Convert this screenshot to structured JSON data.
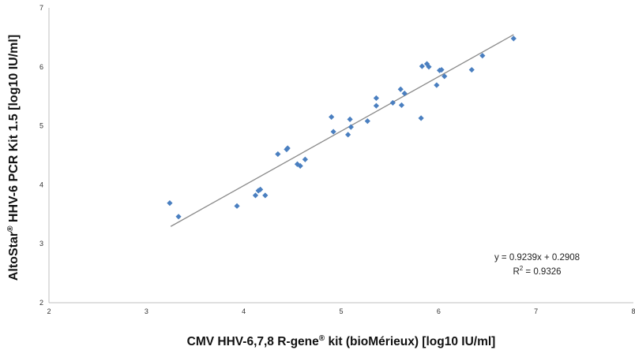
{
  "chart_data": {
    "type": "scatter",
    "xlabel_pre": "CMV HHV-6,7,8 R-gene",
    "xlabel_sup": "®",
    "xlabel_post": " kit (bioMérieux) [log10 IU/ml]",
    "ylabel_pre": "AltoStar",
    "ylabel_sup": "®",
    "ylabel_post": " HHV-6 PCR Kit 1.5 [log10 IU/ml]",
    "xlim": [
      2,
      8
    ],
    "ylim": [
      2,
      7
    ],
    "x_ticks": [
      "2",
      "3",
      "4",
      "5",
      "6",
      "7",
      "8"
    ],
    "y_ticks": [
      "2",
      "3",
      "4",
      "5",
      "6",
      "7"
    ],
    "grid": false,
    "legend": "none",
    "marker_color": "#4a7fc0",
    "trendline_color": "#8a8a8a",
    "trendline": {
      "slope": 0.9239,
      "intercept": 0.2908,
      "x_range": [
        3.25,
        6.77
      ]
    },
    "equation": "y = 0.9239x + 0.2908",
    "r2_prefix": "R",
    "r2_sup": "2",
    "r2_value": " = 0.9326",
    "points": [
      {
        "x": 3.24,
        "y": 3.69
      },
      {
        "x": 3.33,
        "y": 3.46
      },
      {
        "x": 3.93,
        "y": 3.64
      },
      {
        "x": 4.12,
        "y": 3.82
      },
      {
        "x": 4.15,
        "y": 3.9
      },
      {
        "x": 4.17,
        "y": 3.92
      },
      {
        "x": 4.22,
        "y": 3.82
      },
      {
        "x": 4.35,
        "y": 4.52
      },
      {
        "x": 4.44,
        "y": 4.6
      },
      {
        "x": 4.45,
        "y": 4.62
      },
      {
        "x": 4.55,
        "y": 4.35
      },
      {
        "x": 4.58,
        "y": 4.32
      },
      {
        "x": 4.63,
        "y": 4.43
      },
      {
        "x": 4.9,
        "y": 5.15
      },
      {
        "x": 4.92,
        "y": 4.9
      },
      {
        "x": 5.07,
        "y": 4.85
      },
      {
        "x": 5.09,
        "y": 5.11
      },
      {
        "x": 5.1,
        "y": 4.98
      },
      {
        "x": 5.27,
        "y": 5.08
      },
      {
        "x": 5.36,
        "y": 5.47
      },
      {
        "x": 5.36,
        "y": 5.34
      },
      {
        "x": 5.53,
        "y": 5.39
      },
      {
        "x": 5.61,
        "y": 5.62
      },
      {
        "x": 5.62,
        "y": 5.35
      },
      {
        "x": 5.65,
        "y": 5.55
      },
      {
        "x": 5.82,
        "y": 5.13
      },
      {
        "x": 5.83,
        "y": 6.01
      },
      {
        "x": 5.88,
        "y": 6.05
      },
      {
        "x": 5.9,
        "y": 6.0
      },
      {
        "x": 5.98,
        "y": 5.69
      },
      {
        "x": 6.01,
        "y": 5.94
      },
      {
        "x": 6.03,
        "y": 5.95
      },
      {
        "x": 6.06,
        "y": 5.84
      },
      {
        "x": 6.34,
        "y": 5.95
      },
      {
        "x": 6.45,
        "y": 6.19
      },
      {
        "x": 6.77,
        "y": 6.48
      }
    ]
  }
}
